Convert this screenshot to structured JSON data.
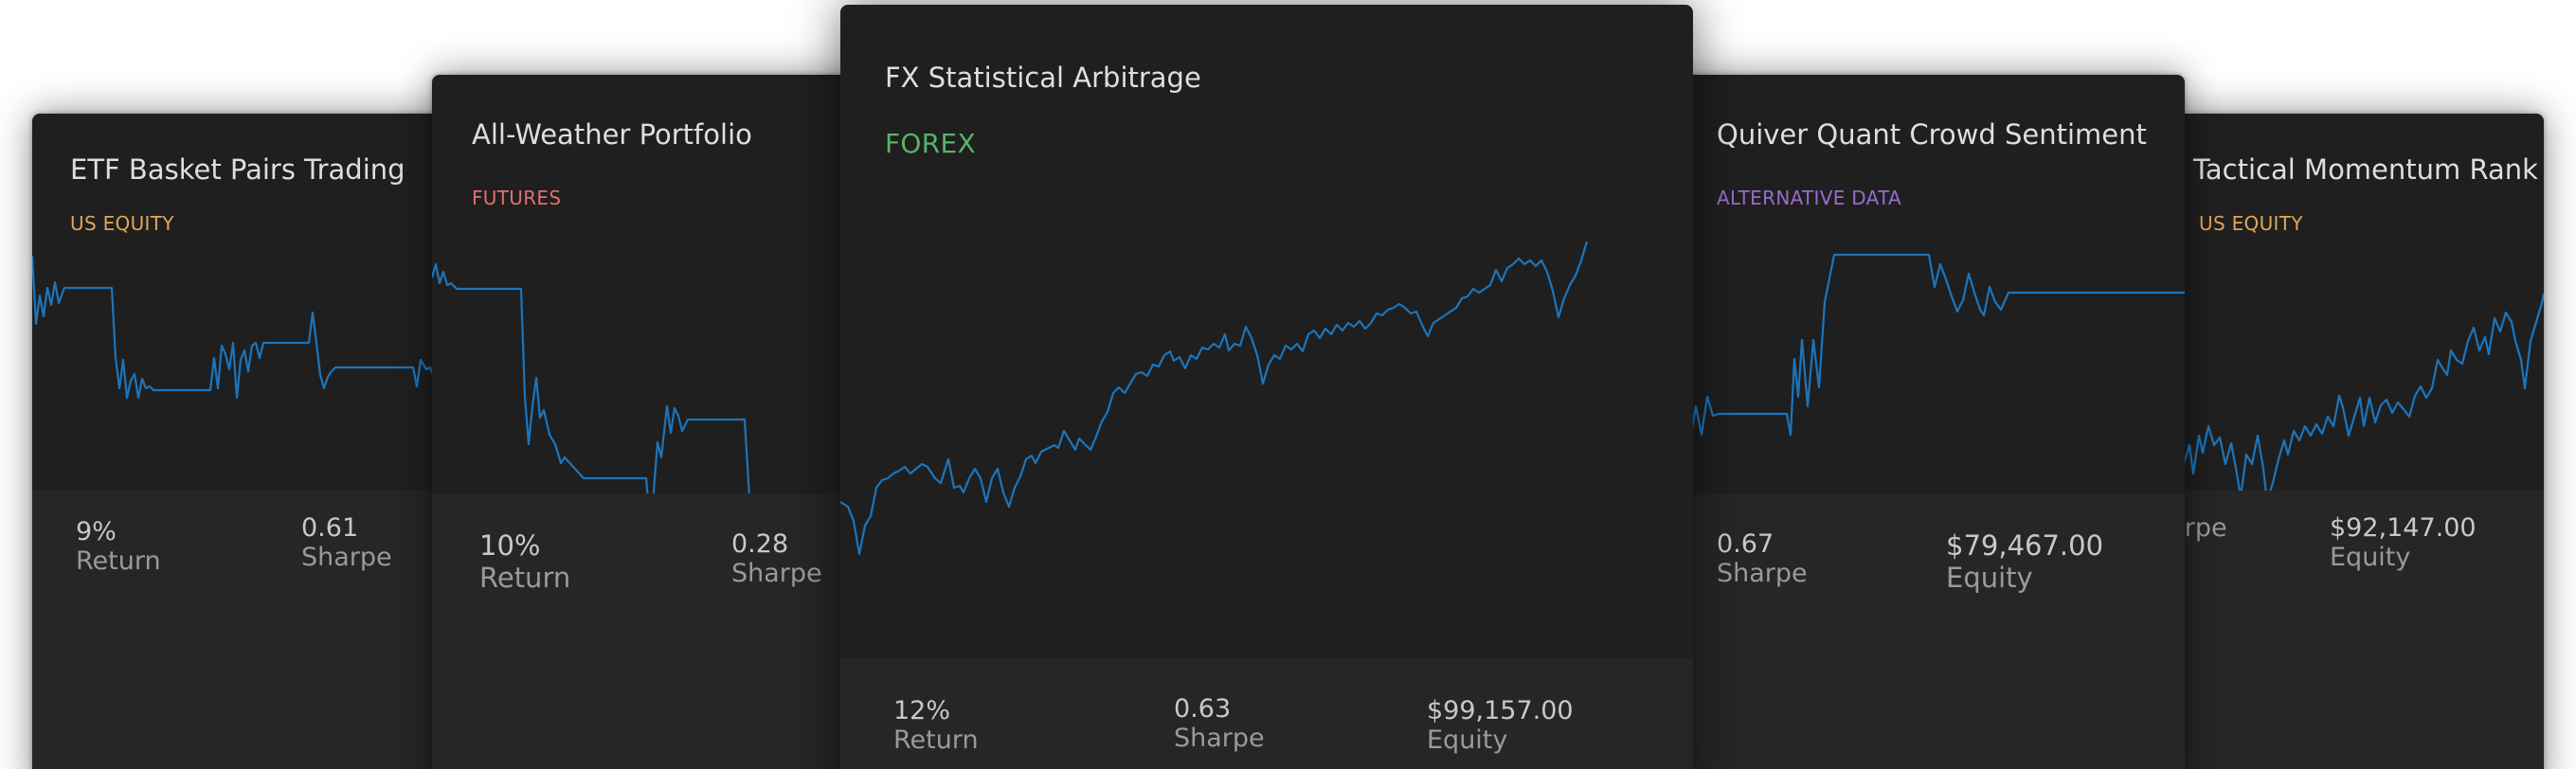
{
  "cards": [
    {
      "id": "card-1",
      "title": "ETF Basket Pairs Trading",
      "tag": "US EQUITY",
      "tag_color": "#e0a65a",
      "stats": [
        {
          "value": "9%",
          "label": "Return"
        },
        {
          "value": "0.61",
          "label": "Sharpe"
        }
      ]
    },
    {
      "id": "card-2",
      "title": "All-Weather Portfolio",
      "tag": "FUTURES",
      "tag_color": "#e07070",
      "stats": [
        {
          "value": "10%",
          "label": "Return"
        },
        {
          "value": "0.28",
          "label": "Sharpe"
        }
      ]
    },
    {
      "id": "card-3",
      "title": "FX Statistical Arbitrage",
      "tag": "FOREX",
      "tag_color": "#58b368",
      "stats": [
        {
          "value": "12%",
          "label": "Return"
        },
        {
          "value": "0.63",
          "label": "Sharpe"
        },
        {
          "value": "$99,157.00",
          "label": "Equity"
        }
      ]
    },
    {
      "id": "card-4",
      "title": "Quiver Quant Crowd Sentiment",
      "tag": "ALTERNATIVE DATA",
      "tag_color": "#9b6bcc",
      "stats": [
        {
          "value": "0.67",
          "label": "Sharpe"
        },
        {
          "value": "$79,467.00",
          "label": "Equity"
        }
      ]
    },
    {
      "id": "card-5",
      "title": "Tactical Momentum Rank",
      "tag": "US EQUITY",
      "tag_color": "#e0a65a",
      "stats": [
        {
          "value": "",
          "label": "Sharpe"
        },
        {
          "value": "$92,147.00",
          "label": "Equity"
        }
      ]
    }
  ],
  "colors": {
    "card_bg": "#1f1f1f",
    "stats_bg": "#262626",
    "line": "#1b75bc"
  }
}
